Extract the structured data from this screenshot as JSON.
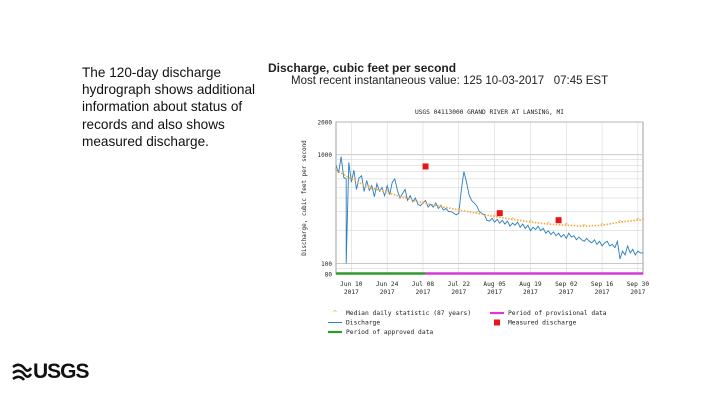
{
  "slide": {
    "caption": "The 120-day discharge hydrograph shows additional information about status of records and also shows measured discharge.",
    "logo_text": "USGS"
  },
  "colors": {
    "discharge": "#2a7fc0",
    "median": "#f2a93b",
    "measured": "#e8141a",
    "approved": "#2e9a2e",
    "provisional": "#d63ad6",
    "grid": "#cfcfcf"
  },
  "chart_data": {
    "type": "line",
    "title": "Discharge, cubic feet per second",
    "subtitle": "Most recent instantaneous value: 125 10-03-2017   07:45 EST",
    "plot_title": "USGS 04113000 GRAND RIVER AT LANSING, MI",
    "ylabel": "Discharge, cubic feet per second",
    "yscale": "log",
    "ylim": [
      80,
      2000
    ],
    "yticks": [
      {
        "value": 2000,
        "label": "2000"
      },
      {
        "value": 1000,
        "label": "1000"
      },
      {
        "value": 100,
        "label": "100"
      },
      {
        "value": 80,
        "label": "80"
      }
    ],
    "xlim": [
      "2017-06-04",
      "2017-10-02"
    ],
    "xticks": [
      {
        "date": "2017-06-10",
        "line1": "Jun 10",
        "line2": "2017"
      },
      {
        "date": "2017-06-24",
        "line1": "Jun 24",
        "line2": "2017"
      },
      {
        "date": "2017-07-08",
        "line1": "Jul 08",
        "line2": "2017"
      },
      {
        "date": "2017-07-22",
        "line1": "Jul 22",
        "line2": "2017"
      },
      {
        "date": "2017-08-05",
        "line1": "Aug 05",
        "line2": "2017"
      },
      {
        "date": "2017-08-19",
        "line1": "Aug 19",
        "line2": "2017"
      },
      {
        "date": "2017-09-02",
        "line1": "Sep 02",
        "line2": "2017"
      },
      {
        "date": "2017-09-16",
        "line1": "Sep 16",
        "line2": "2017"
      },
      {
        "date": "2017-09-30",
        "line1": "Sep 30",
        "line2": "2017"
      }
    ],
    "grid": true,
    "series": [
      {
        "name": "Discharge",
        "type": "line",
        "color": "#2a7fc0",
        "points": [
          [
            "2017-06-04",
            800
          ],
          [
            "2017-06-05",
            680
          ],
          [
            "2017-06-06",
            960
          ],
          [
            "2017-06-07",
            620
          ],
          [
            "2017-06-08",
            600
          ],
          [
            "2017-06-08",
            100
          ],
          [
            "2017-06-09",
            850
          ],
          [
            "2017-06-10",
            560
          ],
          [
            "2017-06-11",
            720
          ],
          [
            "2017-06-12",
            480
          ],
          [
            "2017-06-13",
            610
          ],
          [
            "2017-06-14",
            640
          ],
          [
            "2017-06-15",
            460
          ],
          [
            "2017-06-16",
            580
          ],
          [
            "2017-06-17",
            470
          ],
          [
            "2017-06-18",
            520
          ],
          [
            "2017-06-19",
            410
          ],
          [
            "2017-06-20",
            540
          ],
          [
            "2017-06-21",
            460
          ],
          [
            "2017-06-22",
            500
          ],
          [
            "2017-06-23",
            420
          ],
          [
            "2017-06-24",
            520
          ],
          [
            "2017-06-25",
            430
          ],
          [
            "2017-06-26",
            560
          ],
          [
            "2017-06-27",
            600
          ],
          [
            "2017-06-28",
            470
          ],
          [
            "2017-06-29",
            400
          ],
          [
            "2017-06-30",
            440
          ],
          [
            "2017-07-01",
            480
          ],
          [
            "2017-07-02",
            380
          ],
          [
            "2017-07-03",
            420
          ],
          [
            "2017-07-04",
            370
          ],
          [
            "2017-07-05",
            400
          ],
          [
            "2017-07-06",
            350
          ],
          [
            "2017-07-07",
            340
          ],
          [
            "2017-07-08",
            360
          ],
          [
            "2017-07-09",
            380
          ],
          [
            "2017-07-10",
            330
          ],
          [
            "2017-07-11",
            350
          ],
          [
            "2017-07-12",
            330
          ],
          [
            "2017-07-13",
            360
          ],
          [
            "2017-07-14",
            320
          ],
          [
            "2017-07-15",
            340
          ],
          [
            "2017-07-16",
            310
          ],
          [
            "2017-07-17",
            320
          ],
          [
            "2017-07-18",
            300
          ],
          [
            "2017-07-19",
            300
          ],
          [
            "2017-07-20",
            290
          ],
          [
            "2017-07-21",
            280
          ],
          [
            "2017-07-22",
            290
          ],
          [
            "2017-07-23",
            480
          ],
          [
            "2017-07-24",
            700
          ],
          [
            "2017-07-25",
            560
          ],
          [
            "2017-07-26",
            430
          ],
          [
            "2017-07-27",
            380
          ],
          [
            "2017-07-28",
            360
          ],
          [
            "2017-07-29",
            340
          ],
          [
            "2017-07-30",
            300
          ],
          [
            "2017-07-31",
            290
          ],
          [
            "2017-08-01",
            280
          ],
          [
            "2017-08-02",
            250
          ],
          [
            "2017-08-03",
            245
          ],
          [
            "2017-08-04",
            260
          ],
          [
            "2017-08-05",
            240
          ],
          [
            "2017-08-06",
            255
          ],
          [
            "2017-08-07",
            235
          ],
          [
            "2017-08-08",
            250
          ],
          [
            "2017-08-09",
            230
          ],
          [
            "2017-08-10",
            245
          ],
          [
            "2017-08-11",
            220
          ],
          [
            "2017-08-12",
            235
          ],
          [
            "2017-08-13",
            225
          ],
          [
            "2017-08-14",
            240
          ],
          [
            "2017-08-15",
            215
          ],
          [
            "2017-08-16",
            230
          ],
          [
            "2017-08-17",
            210
          ],
          [
            "2017-08-18",
            225
          ],
          [
            "2017-08-19",
            200
          ],
          [
            "2017-08-20",
            215
          ],
          [
            "2017-08-21",
            205
          ],
          [
            "2017-08-22",
            220
          ],
          [
            "2017-08-23",
            200
          ],
          [
            "2017-08-24",
            210
          ],
          [
            "2017-08-25",
            190
          ],
          [
            "2017-08-26",
            200
          ],
          [
            "2017-08-27",
            185
          ],
          [
            "2017-08-28",
            195
          ],
          [
            "2017-08-29",
            180
          ],
          [
            "2017-08-30",
            190
          ],
          [
            "2017-08-31",
            175
          ],
          [
            "2017-09-01",
            185
          ],
          [
            "2017-09-02",
            170
          ],
          [
            "2017-09-03",
            190
          ],
          [
            "2017-09-04",
            175
          ],
          [
            "2017-09-05",
            180
          ],
          [
            "2017-09-06",
            165
          ],
          [
            "2017-09-07",
            175
          ],
          [
            "2017-09-08",
            165
          ],
          [
            "2017-09-09",
            160
          ],
          [
            "2017-09-10",
            170
          ],
          [
            "2017-09-11",
            160
          ],
          [
            "2017-09-12",
            155
          ],
          [
            "2017-09-13",
            165
          ],
          [
            "2017-09-14",
            150
          ],
          [
            "2017-09-15",
            160
          ],
          [
            "2017-09-16",
            145
          ],
          [
            "2017-09-17",
            155
          ],
          [
            "2017-09-18",
            160
          ],
          [
            "2017-09-19",
            145
          ],
          [
            "2017-09-20",
            150
          ],
          [
            "2017-09-21",
            140
          ],
          [
            "2017-09-22",
            160
          ],
          [
            "2017-09-23",
            110
          ],
          [
            "2017-09-24",
            130
          ],
          [
            "2017-09-25",
            120
          ],
          [
            "2017-09-26",
            145
          ],
          [
            "2017-09-27",
            125
          ],
          [
            "2017-09-28",
            135
          ],
          [
            "2017-09-29",
            120
          ],
          [
            "2017-09-30",
            130
          ],
          [
            "2017-10-01",
            125
          ],
          [
            "2017-10-02",
            125
          ]
        ]
      },
      {
        "name": "Median daily statistic (87 years)",
        "type": "markers",
        "color": "#f2a93b",
        "points": [
          [
            "2017-06-04",
            720
          ],
          [
            "2017-06-10",
            600
          ],
          [
            "2017-06-17",
            500
          ],
          [
            "2017-06-24",
            450
          ],
          [
            "2017-07-01",
            400
          ],
          [
            "2017-07-08",
            360
          ],
          [
            "2017-07-15",
            335
          ],
          [
            "2017-07-22",
            310
          ],
          [
            "2017-07-29",
            290
          ],
          [
            "2017-08-05",
            270
          ],
          [
            "2017-08-12",
            255
          ],
          [
            "2017-08-19",
            240
          ],
          [
            "2017-08-26",
            230
          ],
          [
            "2017-09-02",
            225
          ],
          [
            "2017-09-09",
            220
          ],
          [
            "2017-09-16",
            225
          ],
          [
            "2017-09-23",
            240
          ],
          [
            "2017-09-30",
            250
          ],
          [
            "2017-10-02",
            250
          ]
        ]
      },
      {
        "name": "Measured discharge",
        "type": "squares",
        "color": "#e8141a",
        "points": [
          [
            "2017-07-09",
            780
          ],
          [
            "2017-08-07",
            290
          ],
          [
            "2017-08-30",
            250
          ]
        ]
      }
    ],
    "periods": [
      {
        "name": "Period of approved data",
        "color": "#2e9a2e",
        "start": "2017-06-04",
        "end": "2017-07-09"
      },
      {
        "name": "Period of provisional data",
        "color": "#d63ad6",
        "start": "2017-07-09",
        "end": "2017-10-02"
      }
    ],
    "legend": [
      {
        "key": "median",
        "label": "Median daily statistic (87 years)"
      },
      {
        "key": "discharge",
        "label": "Discharge"
      },
      {
        "key": "approved",
        "label": "Period of approved data"
      },
      {
        "key": "provisional",
        "label": "Period of provisional data"
      },
      {
        "key": "measured",
        "label": "Measured discharge"
      }
    ]
  }
}
